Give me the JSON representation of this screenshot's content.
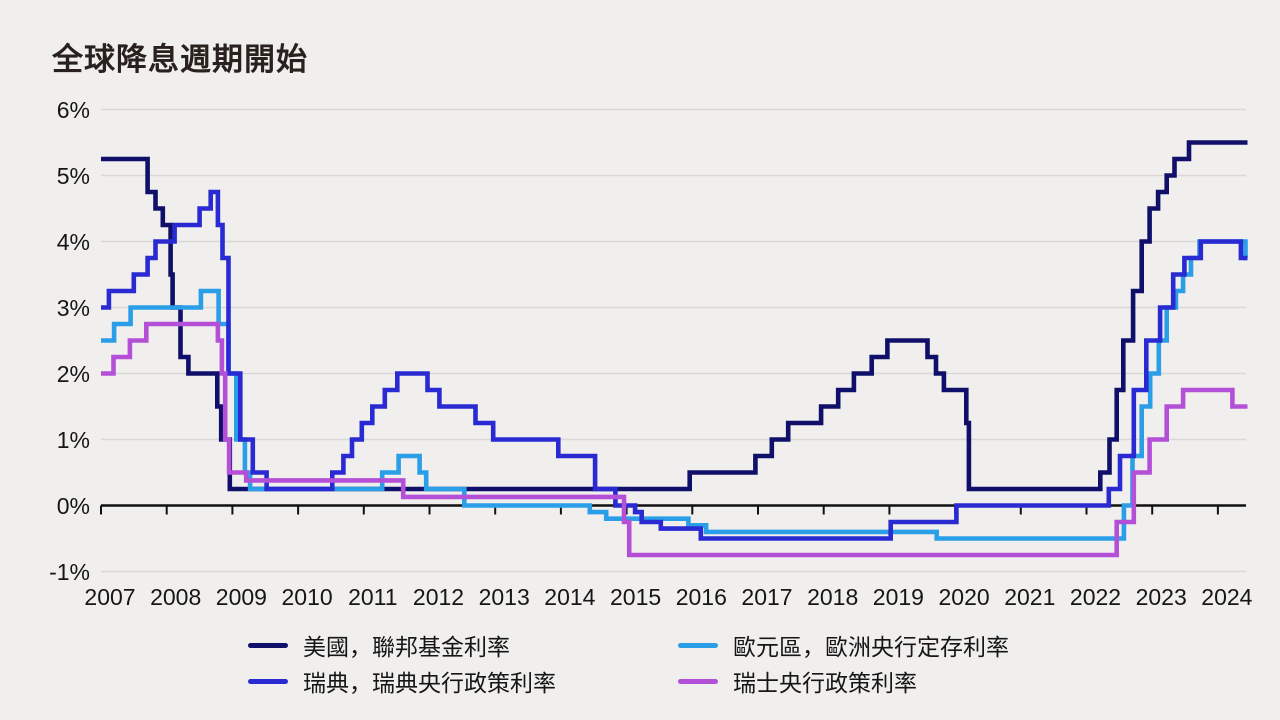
{
  "chart_data": {
    "type": "line",
    "variant": "step-after",
    "title": "全球降息週期開始",
    "xlabel": "",
    "ylabel": "",
    "x_range": [
      2007,
      2024.45
    ],
    "ylim": [
      -1,
      6
    ],
    "grid": "horizontal",
    "legend_position": "bottom-two-columns",
    "axis_color": "#111111",
    "grid_color": "#d9d8d6",
    "background_color": "#f0efed",
    "y_ticks": [
      {
        "value": 6,
        "label": "6%"
      },
      {
        "value": 5,
        "label": "5%"
      },
      {
        "value": 4,
        "label": "4%"
      },
      {
        "value": 3,
        "label": "3%"
      },
      {
        "value": 2,
        "label": "2%"
      },
      {
        "value": 1,
        "label": "1%"
      },
      {
        "value": 0,
        "label": "0%"
      },
      {
        "value": -1,
        "label": "-1%"
      }
    ],
    "x_ticks": [
      {
        "value": 2007,
        "label": "2007"
      },
      {
        "value": 2008,
        "label": "2008"
      },
      {
        "value": 2009,
        "label": "2009"
      },
      {
        "value": 2010,
        "label": "2010"
      },
      {
        "value": 2011,
        "label": "2011"
      },
      {
        "value": 2012,
        "label": "2012"
      },
      {
        "value": 2013,
        "label": "2013"
      },
      {
        "value": 2014,
        "label": "2014"
      },
      {
        "value": 2015,
        "label": "2015"
      },
      {
        "value": 2016,
        "label": "2016"
      },
      {
        "value": 2017,
        "label": "2017"
      },
      {
        "value": 2018,
        "label": "2018"
      },
      {
        "value": 2019,
        "label": "2019"
      },
      {
        "value": 2020,
        "label": "2020"
      },
      {
        "value": 2021,
        "label": "2021"
      },
      {
        "value": 2022,
        "label": "2022"
      },
      {
        "value": 2023,
        "label": "2023"
      },
      {
        "value": 2024,
        "label": "2024"
      }
    ],
    "series": [
      {
        "name": "美國，聯邦基金利率",
        "color": "#10106a",
        "points": [
          [
            2007.0,
            5.25
          ],
          [
            2007.71,
            4.75
          ],
          [
            2007.83,
            4.5
          ],
          [
            2007.94,
            4.25
          ],
          [
            2008.06,
            3.5
          ],
          [
            2008.09,
            3.0
          ],
          [
            2008.21,
            2.25
          ],
          [
            2008.33,
            2.0
          ],
          [
            2008.77,
            1.5
          ],
          [
            2008.83,
            1.0
          ],
          [
            2008.96,
            0.25
          ],
          [
            2015.96,
            0.5
          ],
          [
            2016.96,
            0.75
          ],
          [
            2017.21,
            1.0
          ],
          [
            2017.46,
            1.25
          ],
          [
            2017.96,
            1.5
          ],
          [
            2018.22,
            1.75
          ],
          [
            2018.46,
            2.0
          ],
          [
            2018.73,
            2.25
          ],
          [
            2018.97,
            2.5
          ],
          [
            2019.58,
            2.25
          ],
          [
            2019.71,
            2.0
          ],
          [
            2019.83,
            1.75
          ],
          [
            2020.17,
            1.25
          ],
          [
            2020.21,
            0.25
          ],
          [
            2022.21,
            0.5
          ],
          [
            2022.35,
            1.0
          ],
          [
            2022.46,
            1.75
          ],
          [
            2022.56,
            2.5
          ],
          [
            2022.71,
            3.25
          ],
          [
            2022.84,
            4.0
          ],
          [
            2022.96,
            4.5
          ],
          [
            2023.09,
            4.75
          ],
          [
            2023.22,
            5.0
          ],
          [
            2023.34,
            5.25
          ],
          [
            2023.56,
            5.5
          ]
        ]
      },
      {
        "name": "歐元區，歐洲央行定存利率",
        "color": "#2b9ee8",
        "points": [
          [
            2007.0,
            2.5
          ],
          [
            2007.2,
            2.75
          ],
          [
            2007.45,
            3.0
          ],
          [
            2008.52,
            3.25
          ],
          [
            2008.79,
            2.75
          ],
          [
            2008.94,
            2.0
          ],
          [
            2009.06,
            1.0
          ],
          [
            2009.19,
            0.5
          ],
          [
            2009.27,
            0.25
          ],
          [
            2011.28,
            0.5
          ],
          [
            2011.53,
            0.75
          ],
          [
            2011.85,
            0.5
          ],
          [
            2011.95,
            0.25
          ],
          [
            2012.53,
            0.0
          ],
          [
            2014.44,
            -0.1
          ],
          [
            2014.69,
            -0.2
          ],
          [
            2015.94,
            -0.3
          ],
          [
            2016.21,
            -0.4
          ],
          [
            2019.72,
            -0.5
          ],
          [
            2022.57,
            0.0
          ],
          [
            2022.7,
            0.75
          ],
          [
            2022.84,
            1.5
          ],
          [
            2022.97,
            2.0
          ],
          [
            2023.1,
            2.5
          ],
          [
            2023.22,
            3.0
          ],
          [
            2023.36,
            3.25
          ],
          [
            2023.47,
            3.5
          ],
          [
            2023.59,
            3.75
          ],
          [
            2023.72,
            4.0
          ],
          [
            2024.42,
            3.75
          ]
        ]
      },
      {
        "name": "瑞典，瑞典央行政策利率",
        "color": "#2a2ad2",
        "points": [
          [
            2007.0,
            3.0
          ],
          [
            2007.12,
            3.25
          ],
          [
            2007.5,
            3.5
          ],
          [
            2007.71,
            3.75
          ],
          [
            2007.83,
            4.0
          ],
          [
            2008.12,
            4.25
          ],
          [
            2008.5,
            4.5
          ],
          [
            2008.67,
            4.75
          ],
          [
            2008.78,
            4.25
          ],
          [
            2008.85,
            3.75
          ],
          [
            2008.94,
            2.0
          ],
          [
            2009.12,
            1.0
          ],
          [
            2009.31,
            0.5
          ],
          [
            2009.52,
            0.25
          ],
          [
            2010.52,
            0.5
          ],
          [
            2010.69,
            0.75
          ],
          [
            2010.82,
            1.0
          ],
          [
            2010.97,
            1.25
          ],
          [
            2011.13,
            1.5
          ],
          [
            2011.32,
            1.75
          ],
          [
            2011.51,
            2.0
          ],
          [
            2011.97,
            1.75
          ],
          [
            2012.15,
            1.5
          ],
          [
            2012.7,
            1.25
          ],
          [
            2012.97,
            1.0
          ],
          [
            2013.96,
            0.75
          ],
          [
            2014.52,
            0.25
          ],
          [
            2014.83,
            0.0
          ],
          [
            2015.13,
            -0.1
          ],
          [
            2015.23,
            -0.25
          ],
          [
            2015.52,
            -0.35
          ],
          [
            2016.13,
            -0.5
          ],
          [
            2019.02,
            -0.25
          ],
          [
            2020.02,
            0.0
          ],
          [
            2022.34,
            0.25
          ],
          [
            2022.51,
            0.75
          ],
          [
            2022.72,
            1.75
          ],
          [
            2022.91,
            2.5
          ],
          [
            2023.12,
            3.0
          ],
          [
            2023.32,
            3.5
          ],
          [
            2023.49,
            3.75
          ],
          [
            2023.74,
            4.0
          ],
          [
            2024.35,
            3.75
          ]
        ]
      },
      {
        "name": "瑞士央行政策利率",
        "color": "#b450d8",
        "points": [
          [
            2007.0,
            2.0
          ],
          [
            2007.19,
            2.25
          ],
          [
            2007.44,
            2.5
          ],
          [
            2007.69,
            2.75
          ],
          [
            2008.78,
            2.5
          ],
          [
            2008.84,
            2.0
          ],
          [
            2008.89,
            1.0
          ],
          [
            2008.95,
            0.5
          ],
          [
            2009.21,
            0.38
          ],
          [
            2011.6,
            0.13
          ],
          [
            2014.96,
            -0.25
          ],
          [
            2015.04,
            -0.75
          ],
          [
            2022.46,
            -0.25
          ],
          [
            2022.72,
            0.5
          ],
          [
            2022.96,
            1.0
          ],
          [
            2023.22,
            1.5
          ],
          [
            2023.47,
            1.75
          ],
          [
            2024.22,
            1.5
          ]
        ]
      }
    ],
    "legend": [
      {
        "label": "美國，聯邦基金利率",
        "color": "#10106a"
      },
      {
        "label": "歐元區，歐洲央行定存利率",
        "color": "#2b9ee8"
      },
      {
        "label": "瑞典，瑞典央行政策利率",
        "color": "#2a2ad2"
      },
      {
        "label": "瑞士央行政策利率",
        "color": "#b450d8"
      }
    ]
  }
}
